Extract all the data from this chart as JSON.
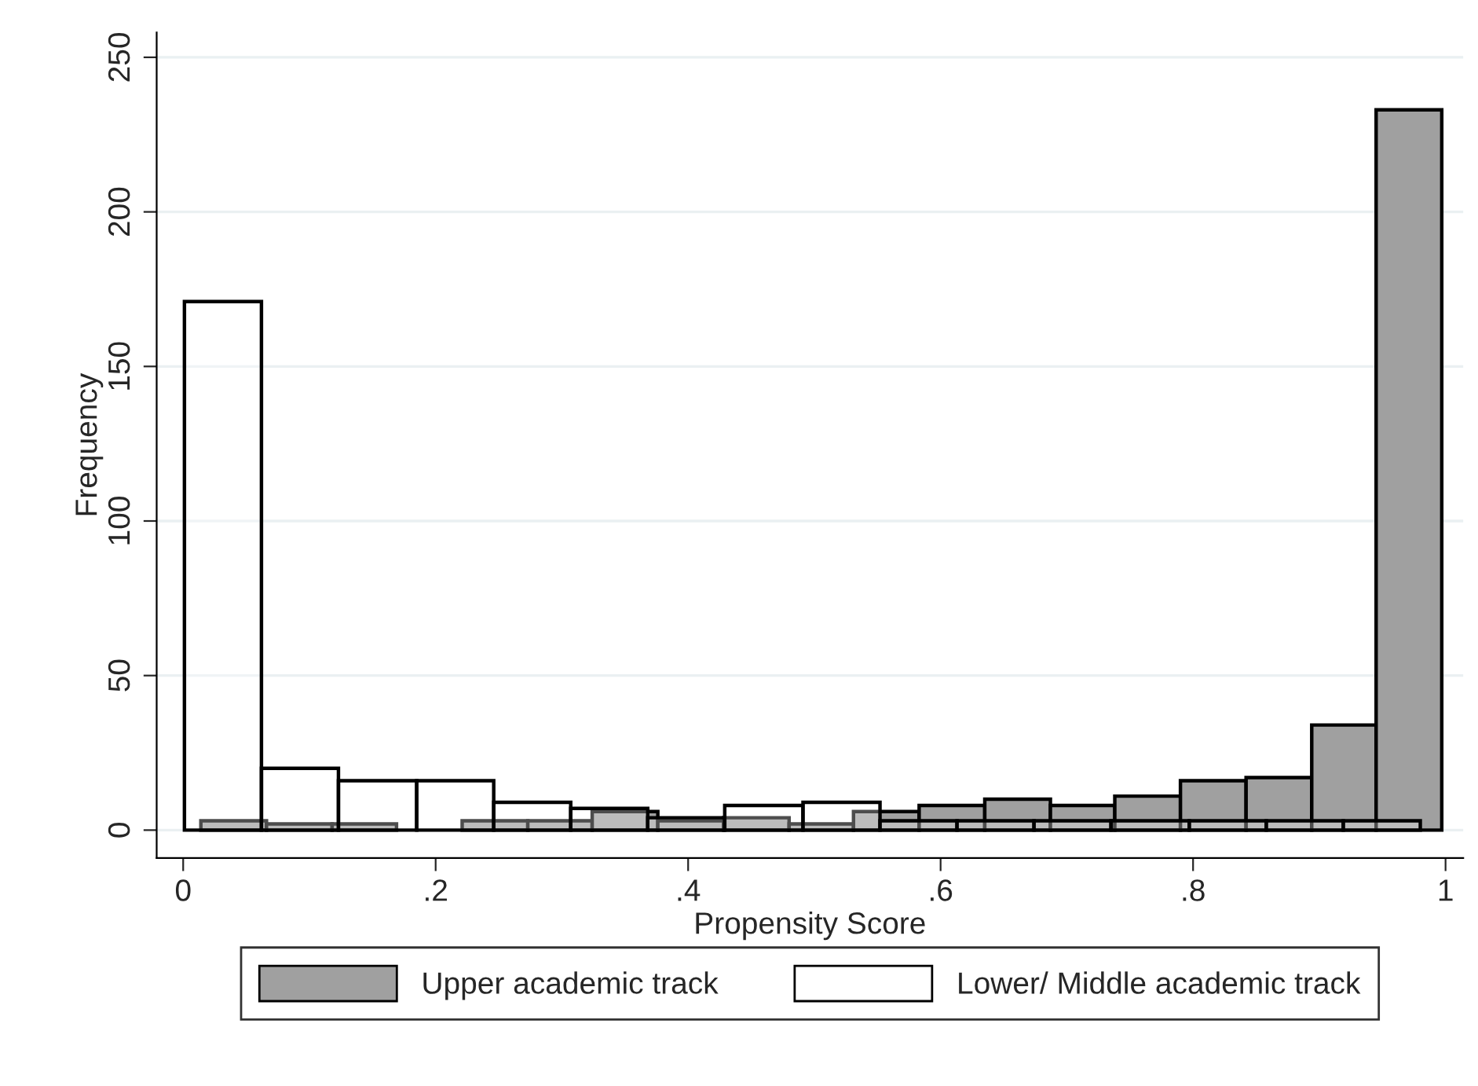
{
  "chart_data": [
    {
      "type": "histogram",
      "xlabel": "Propensity Score",
      "ylabel": "Frequency",
      "bins": [
        0.014,
        0.066,
        0.118,
        0.169,
        0.221,
        0.273,
        0.324,
        0.376,
        0.428,
        0.48,
        0.531,
        0.583,
        0.635,
        0.687,
        0.738,
        0.79,
        0.842,
        0.894,
        0.945,
        0.997
      ],
      "series": [
        {
          "name": "Upper academic track",
          "color": "#a0a0a0",
          "values": [
            3,
            2,
            2,
            0,
            3,
            3,
            6,
            3,
            4,
            2,
            6,
            8,
            10,
            8,
            11,
            16,
            17,
            34,
            233
          ]
        }
      ],
      "xlim": [
        -0.021,
        1.014
      ],
      "ylim": [
        -9,
        258
      ],
      "xticks": [
        0,
        {
          "value": 0.2,
          "label": ".2"
        },
        {
          "value": 0.4,
          "label": ".4"
        },
        {
          "value": 0.6,
          "label": ".6"
        },
        {
          "value": 0.8,
          "label": ".8"
        },
        1
      ],
      "yticks": [
        0,
        50,
        100,
        150,
        200,
        250
      ],
      "grid": "y",
      "legend": "bottom"
    },
    {
      "type": "histogram",
      "bins": [
        0.001,
        0.062,
        0.123,
        0.185,
        0.246,
        0.307,
        0.368,
        0.429,
        0.491,
        0.552,
        0.613,
        0.674,
        0.735,
        0.797,
        0.858,
        0.919,
        0.98
      ],
      "series": [
        {
          "name": "Lower/ Middle academic track",
          "color": "#ffffff",
          "values": [
            171,
            20,
            16,
            16,
            9,
            7,
            4,
            8,
            9,
            3,
            3,
            3,
            3,
            3,
            3,
            3
          ]
        }
      ],
      "xlim": [
        -0.021,
        1.014
      ],
      "ylim": [
        -9,
        258
      ]
    }
  ]
}
